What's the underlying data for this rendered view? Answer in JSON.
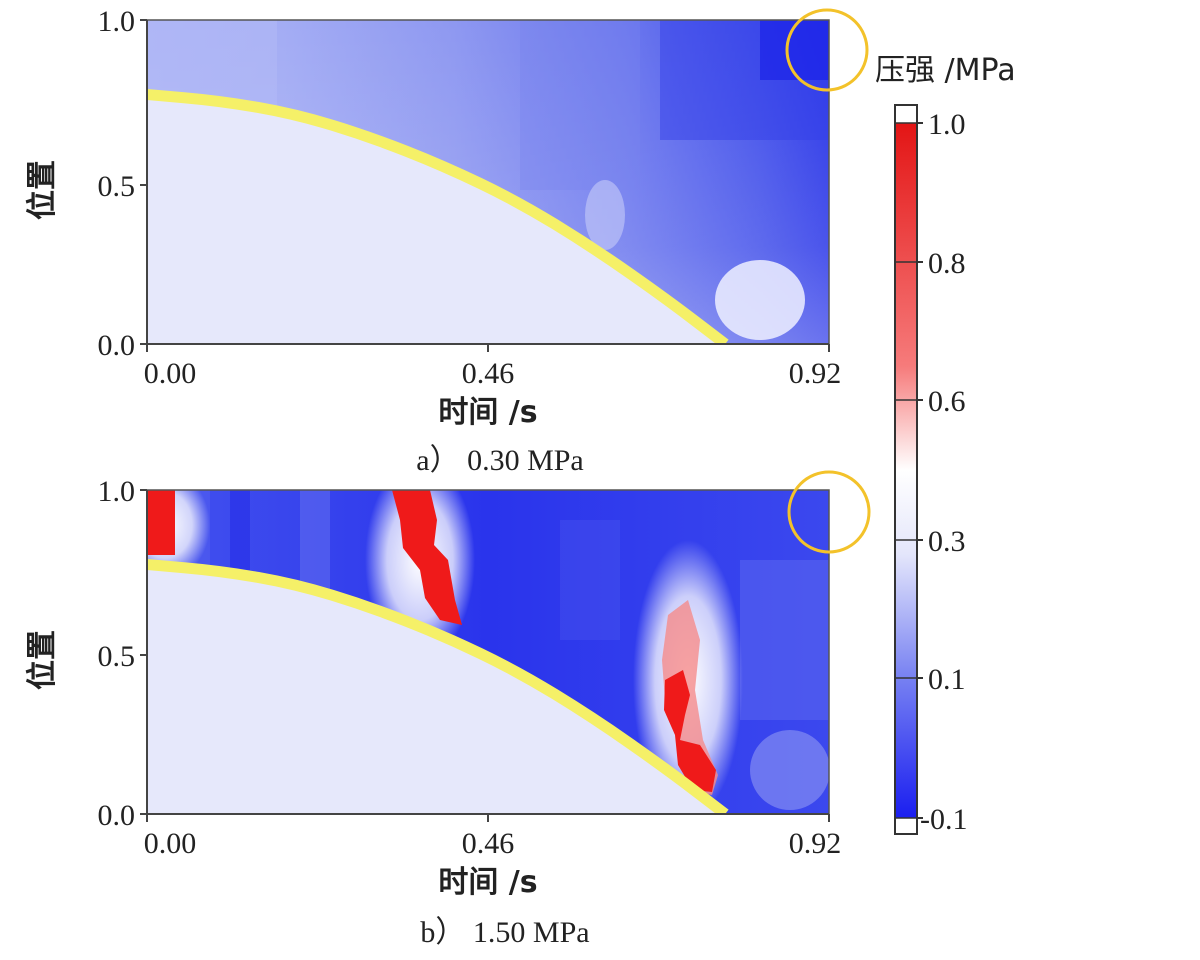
{
  "chart_data": [
    {
      "type": "heatmap",
      "caption": "a） 0.30 MPa",
      "xlabel": "时间 /s",
      "ylabel": "位置",
      "xlim": [
        0,
        0.92
      ],
      "ylim": [
        0,
        1.0
      ],
      "x_ticks": [
        "0.00",
        "0.46",
        "0.92"
      ],
      "y_ticks": [
        "0.0",
        "0.5",
        "1.0"
      ],
      "boundary_curve": {
        "color": "#f5f068",
        "points": [
          [
            0.0,
            0.77
          ],
          [
            0.1,
            0.75
          ],
          [
            0.2,
            0.71
          ],
          [
            0.3,
            0.64
          ],
          [
            0.4,
            0.55
          ],
          [
            0.5,
            0.44
          ],
          [
            0.6,
            0.3
          ],
          [
            0.7,
            0.14
          ],
          [
            0.78,
            0.0
          ]
        ]
      },
      "highlight_circle": {
        "x": 0.92,
        "y": 0.91,
        "color": "#f3c22a"
      },
      "pressure_regions": [
        {
          "t": [
            0.0,
            0.17
          ],
          "p": 0.16
        },
        {
          "t": [
            0.17,
            0.4
          ],
          "p": 0.12
        },
        {
          "t": [
            0.4,
            0.62
          ],
          "p": 0.08
        },
        {
          "t": [
            0.62,
            0.8
          ],
          "p": 0.02
        },
        {
          "t": [
            0.8,
            0.92
          ],
          "p": -0.04
        }
      ]
    },
    {
      "type": "heatmap",
      "caption": "b） 1.50 MPa",
      "xlabel": "时间 /s",
      "ylabel": "位置",
      "xlim": [
        0,
        0.92
      ],
      "ylim": [
        0,
        1.0
      ],
      "x_ticks": [
        "0.00",
        "0.46",
        "0.92"
      ],
      "y_ticks": [
        "0.0",
        "0.5",
        "1.0"
      ],
      "boundary_curve": {
        "color": "#f5f068",
        "points": [
          [
            0.0,
            0.77
          ],
          [
            0.1,
            0.75
          ],
          [
            0.2,
            0.71
          ],
          [
            0.3,
            0.64
          ],
          [
            0.4,
            0.55
          ],
          [
            0.5,
            0.44
          ],
          [
            0.6,
            0.3
          ],
          [
            0.7,
            0.14
          ],
          [
            0.78,
            0.0
          ]
        ]
      },
      "highlight_circle": {
        "x": 0.92,
        "y": 0.91,
        "color": "#f3c22a"
      },
      "high_pressure_bands": [
        {
          "x": 0.02,
          "y": [
            0.8,
            1.0
          ],
          "p": 1.0
        },
        {
          "x": 0.37,
          "y": [
            0.6,
            1.0
          ],
          "p": 1.0
        },
        {
          "x": 0.72,
          "y": [
            0.1,
            0.6
          ],
          "p": 1.0
        }
      ],
      "background_pressure": -0.05
    }
  ],
  "colorbar": {
    "title": "压强 /MPa",
    "ticks": [
      "1.0",
      "0.8",
      "0.6",
      "0.3",
      "0.1",
      "-0.1"
    ],
    "colors": {
      "low": "#1a1ef0",
      "mid": "#ffffff",
      "high": "#f01414",
      "below_threshold": "#e6e8fb"
    }
  }
}
